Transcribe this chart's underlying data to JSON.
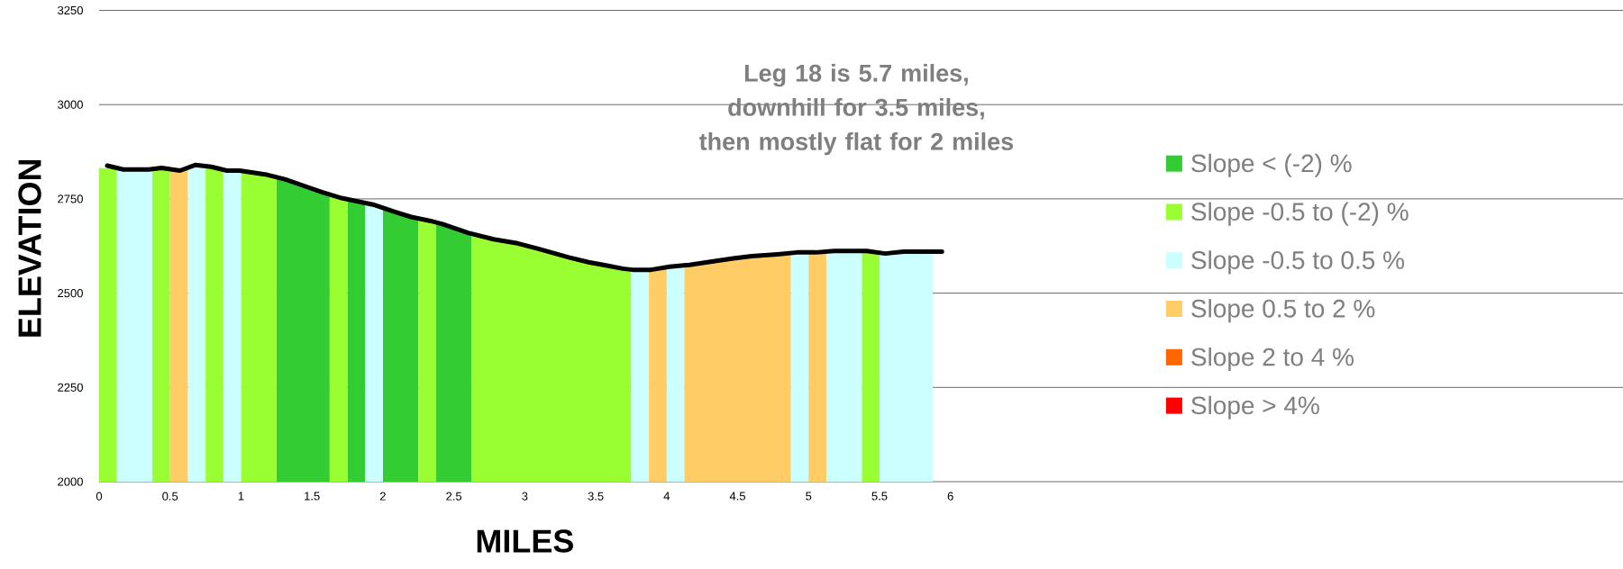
{
  "chart_data": {
    "type": "area",
    "title": "Leg 18 is 5.7 miles, downhill for 3.5 miles, then mostly flat for 2 miles",
    "xlabel": "MILES",
    "ylabel": "ELEVATION",
    "xlim": [
      0,
      10.74
    ],
    "xticks": [
      0,
      0.5,
      1,
      1.5,
      2,
      2.5,
      3,
      3.5,
      4,
      4.5,
      5,
      5.5,
      6
    ],
    "ylim": [
      2000,
      3250
    ],
    "yticks": [
      2000,
      2250,
      2500,
      2750,
      3000,
      3250
    ],
    "grid": "y",
    "legend": "right",
    "series": [
      {
        "name": "Slope < (-2) %",
        "color": "#33cc33",
        "x": [
          1.25,
          1.31,
          1.44,
          1.57,
          1.625,
          null,
          1.75,
          1.875,
          null,
          2.0,
          2.09,
          2.2,
          2.25,
          null,
          2.375,
          2.42,
          2.625
        ],
        "values": [
          2808,
          2802,
          2785,
          2768,
          2762,
          null,
          2748,
          2739,
          null,
          2728,
          2715,
          2702,
          2698,
          null,
          2688,
          2683,
          2657
        ]
      },
      {
        "name": "Slope -0.5 to (-2) %",
        "color": "#99ff33",
        "x": [
          0,
          0.125,
          null,
          0.375,
          0.5,
          null,
          0.75,
          0.875,
          null,
          1.0,
          1.17,
          1.25,
          null,
          1.625,
          1.75,
          null,
          2.25,
          2.375,
          null,
          2.625,
          2.78,
          2.95,
          3.09,
          3.31,
          3.45,
          3.58,
          3.75,
          null,
          5.375,
          5.5
        ],
        "values": [
          2832,
          2829,
          null,
          2829,
          2829,
          null,
          2837,
          2827,
          null,
          2825,
          2815,
          2808,
          null,
          2762,
          2748,
          null,
          2698,
          2688,
          null,
          2657,
          2643,
          2632,
          2618,
          2595,
          2582,
          2573,
          2562,
          null,
          2612,
          2607
        ]
      },
      {
        "name": "Slope -0.5 to 0.5 %",
        "color": "#ccffff",
        "x": [
          0.125,
          0.17,
          0.375,
          null,
          0.625,
          0.75,
          null,
          0.875,
          1.0,
          null,
          1.875,
          2.0,
          null,
          3.75,
          3.875,
          null,
          4.0,
          4.125,
          null,
          4.875,
          5.0,
          null,
          5.125,
          5.375,
          null,
          5.5,
          5.875
        ],
        "values": [
          2830,
          2828,
          2829,
          null,
          2833,
          2837,
          null,
          2827,
          2825,
          null,
          2739,
          2728,
          null,
          2562,
          2562,
          null,
          2569,
          2574,
          null,
          2606,
          2608,
          null,
          2611,
          2612,
          null,
          2607,
          2610
        ]
      },
      {
        "name": "Slope 0.5 to 2 %",
        "color": "#ffcc66",
        "x": [
          0.5,
          0.625,
          null,
          3.875,
          4.0,
          null,
          4.125,
          4.34,
          4.47,
          4.6,
          4.78,
          4.875,
          null,
          5.0,
          5.125
        ],
        "values": [
          2829,
          2833,
          null,
          2562,
          2569,
          null,
          2574,
          2585,
          2592,
          2598,
          2603,
          2606,
          null,
          2608,
          2611
        ]
      },
      {
        "name": "Slope 2 to 4 %",
        "color": "#ff6600"
      },
      {
        "name": "Slope > 4%",
        "color": "#ff0000"
      },
      {
        "color": "#000000",
        "type": "line",
        "x": [
          0.057,
          0.17,
          0.35,
          0.44,
          0.57,
          0.68,
          0.79,
          0.9,
          0.99,
          1.17,
          1.31,
          1.44,
          1.57,
          1.71,
          1.8,
          1.93,
          2.09,
          2.2,
          2.33,
          2.42,
          2.6,
          2.78,
          2.95,
          3.09,
          3.31,
          3.45,
          3.58,
          3.69,
          3.76,
          3.89,
          4.02,
          4.16,
          4.34,
          4.47,
          4.6,
          4.78,
          4.92,
          5.05,
          5.18,
          5.41,
          5.54,
          5.67,
          5.94
        ],
        "values": [
          2838,
          2828,
          2828,
          2832,
          2825,
          2840,
          2835,
          2825,
          2825,
          2815,
          2802,
          2785,
          2768,
          2752,
          2745,
          2735,
          2715,
          2702,
          2692,
          2683,
          2660,
          2643,
          2632,
          2618,
          2595,
          2582,
          2573,
          2565,
          2562,
          2562,
          2570,
          2575,
          2585,
          2592,
          2598,
          2603,
          2608,
          2608,
          2612,
          2612,
          2605,
          2610,
          2610
        ]
      }
    ]
  }
}
